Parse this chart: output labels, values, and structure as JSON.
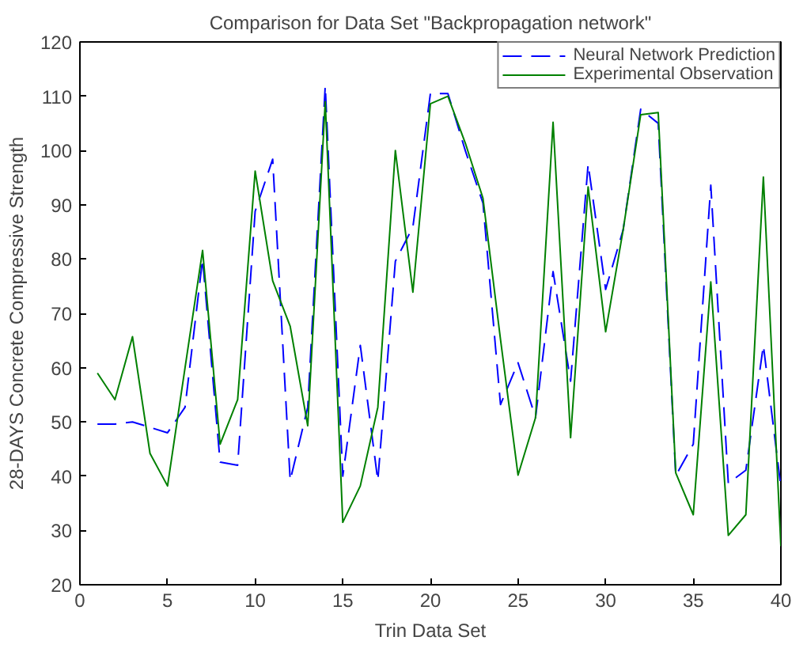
{
  "chart_data": {
    "type": "line",
    "title": "Comparison for Data Set \"Backpropagation network\"",
    "xlabel": "Trin Data Set",
    "ylabel": "28-DAYS Concrete Compressive Strength",
    "x": [
      1,
      2,
      3,
      4,
      5,
      6,
      7,
      8,
      9,
      10,
      11,
      12,
      13,
      14,
      15,
      16,
      17,
      18,
      19,
      20,
      21,
      22,
      23,
      24,
      25,
      26,
      27,
      28,
      29,
      30,
      31,
      32,
      33,
      34,
      35,
      36,
      37,
      38,
      39,
      40
    ],
    "series": [
      {
        "name": "Neural Network Prediction",
        "color": "#0000ff",
        "line_style": "dashed",
        "values": [
          49.6,
          49.6,
          50,
          49,
          48,
          52.7,
          80,
          42.6,
          42,
          88.8,
          98.4,
          39.2,
          52.7,
          111.9,
          40,
          64.1,
          39.2,
          79.6,
          85.9,
          110.5,
          110.5,
          99.9,
          90.3,
          53.2,
          60.9,
          50.8,
          77.7,
          57.5,
          97.5,
          74.4,
          85.4,
          107.6,
          105,
          40.1,
          45.9,
          93.6,
          38.7,
          41.1,
          64.1,
          38
        ]
      },
      {
        "name": "Experimental Observation",
        "color": "#008000",
        "line_style": "solid",
        "values": [
          59,
          54.1,
          65.7,
          44.2,
          38.2,
          60,
          81.6,
          45.9,
          54.1,
          96.2,
          76,
          67.6,
          49.3,
          109,
          31.5,
          38.2,
          52.7,
          100,
          73.9,
          108.6,
          110,
          101.3,
          91.2,
          65.2,
          40.2,
          50.8,
          105.2,
          47.1,
          93.3,
          66.6,
          85.4,
          106.6,
          107,
          40.6,
          32.9,
          75.8,
          29.1,
          32.9,
          95.1,
          27.1
        ]
      }
    ],
    "xlim": [
      0,
      40
    ],
    "xticks": [
      0,
      5,
      10,
      15,
      20,
      25,
      30,
      35,
      40
    ],
    "ylim": [
      20,
      120
    ],
    "yticks": [
      20,
      30,
      40,
      50,
      60,
      70,
      80,
      90,
      100,
      110,
      120
    ],
    "grid": false,
    "legend": "top right",
    "marker": "none"
  }
}
